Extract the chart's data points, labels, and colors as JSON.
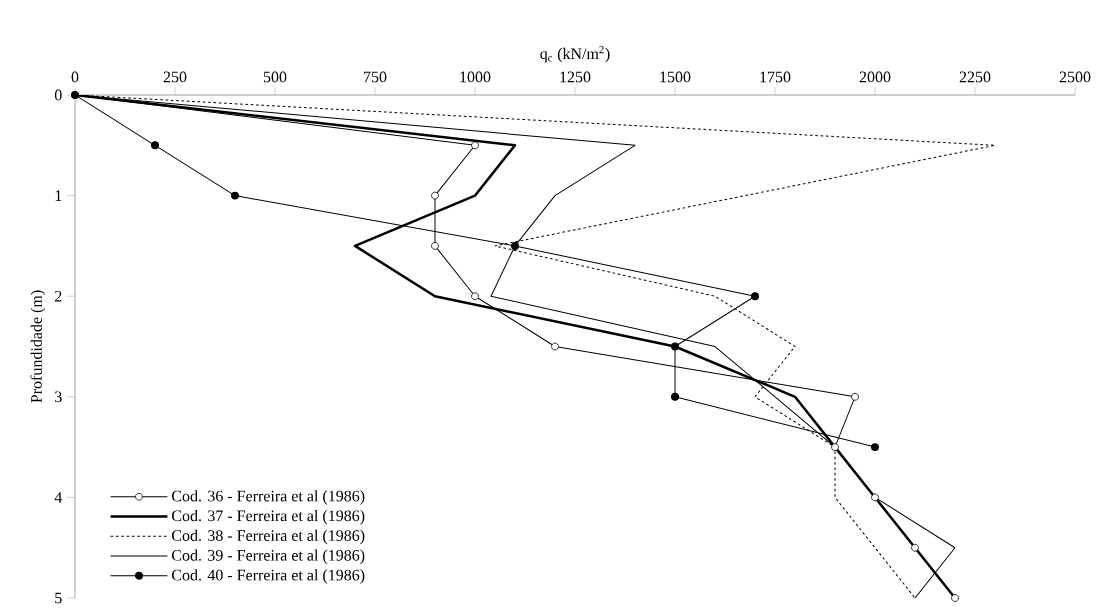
{
  "chart_data": {
    "type": "line",
    "xlabel": "q$_{c}$ (kN/m$^{2}$)",
    "ylabel": "Profundidade (m)",
    "xlim": [
      0,
      2500
    ],
    "xticks": [
      0,
      250,
      500,
      750,
      1000,
      1250,
      1500,
      1750,
      2000,
      2250,
      2500
    ],
    "ylim": [
      5,
      0
    ],
    "yticks": [
      0,
      1,
      2,
      3,
      4,
      5
    ],
    "grid": false,
    "legend": "bottom left",
    "series": [
      {
        "name": "Cod. 36 - Ferreira et al (1986)",
        "color": "#000000",
        "marker": "circle",
        "line_style": "solid",
        "x": [
          0,
          1000,
          900,
          900,
          1000,
          1200,
          1950,
          1900,
          2000,
          2100,
          2200
        ],
        "values": [
          0,
          0.5,
          1,
          1.5,
          2,
          2.5,
          3,
          3.5,
          4,
          4.5,
          5
        ]
      },
      {
        "name": "Cod. 37 - Ferreira et al (1986)",
        "color": "#000000",
        "marker": "none",
        "line_style": "solid",
        "x": [
          0,
          1100,
          1000,
          700,
          900,
          1500,
          1800,
          1900,
          2000,
          2100,
          2200
        ],
        "values": [
          0,
          0.5,
          1,
          1.5,
          2,
          2.5,
          3,
          3.5,
          4,
          4.5,
          5
        ]
      },
      {
        "name": "Cod. 38 - Ferreira et al (1986)",
        "color": "#000000",
        "marker": "none",
        "line_style": "dotted",
        "x": [
          0,
          2300,
          1050,
          1600,
          1800,
          1700,
          1900,
          1900,
          2000,
          2100
        ],
        "values": [
          0,
          0.5,
          1.5,
          2,
          2.5,
          3,
          3.5,
          4,
          4.5,
          5
        ]
      },
      {
        "name": "Cod. 39 - Ferreira et al (1986)",
        "color": "#000000",
        "marker": "none",
        "line_style": "solid",
        "x": [
          0,
          1400,
          1200,
          1100,
          1040,
          1600,
          1750,
          1900,
          2000,
          2200,
          2100
        ],
        "values": [
          0,
          0.5,
          1,
          1.5,
          2,
          2.5,
          3,
          3.5,
          4,
          4.5,
          5
        ]
      },
      {
        "name": "Cod. 40 - Ferreira et al (1986)",
        "color": "#000000",
        "marker": "filled_circle",
        "line_style": "solid",
        "x": [
          0,
          200,
          400,
          1100,
          1700,
          1500,
          1500,
          2000
        ],
        "values": [
          0,
          0.5,
          1,
          1.5,
          2,
          2.5,
          3,
          3.5
        ]
      }
    ]
  }
}
